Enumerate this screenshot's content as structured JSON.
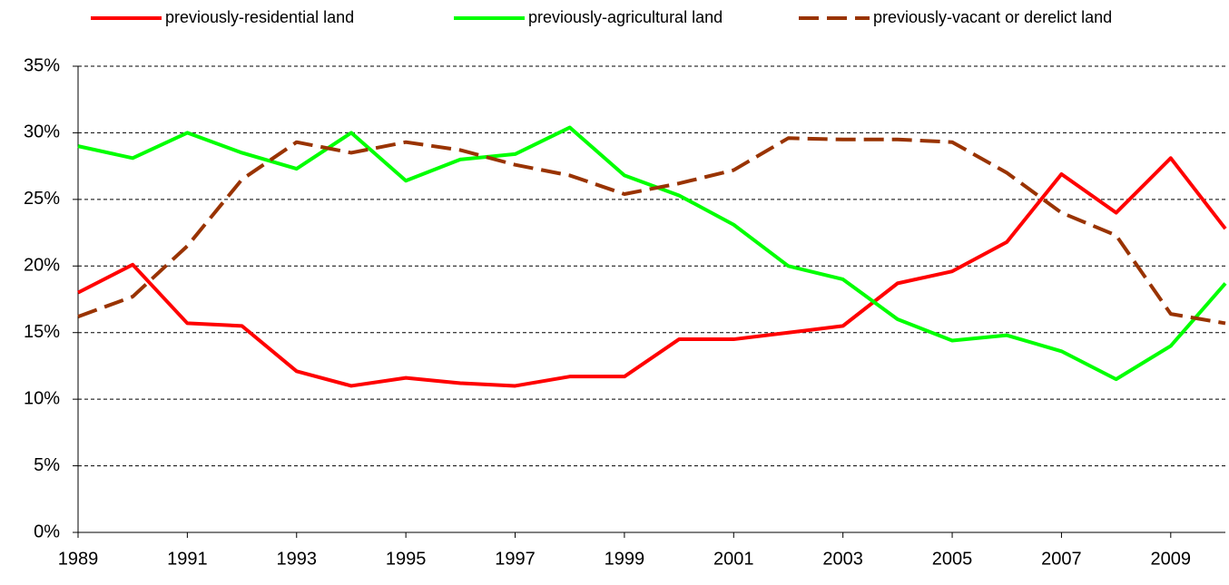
{
  "chart_data": {
    "type": "line",
    "x": [
      1989,
      1990,
      1991,
      1992,
      1993,
      1994,
      1995,
      1996,
      1997,
      1998,
      1999,
      2000,
      2001,
      2002,
      2003,
      2004,
      2005,
      2006,
      2007,
      2008,
      2009,
      2010
    ],
    "xlim": [
      1989,
      2010
    ],
    "xticks": [
      1989,
      1991,
      1993,
      1995,
      1997,
      1999,
      2001,
      2003,
      2005,
      2007,
      2009
    ],
    "ylim": [
      0,
      35
    ],
    "yticks": [
      {
        "value": 0,
        "label": "0%"
      },
      {
        "value": 5,
        "label": "5%"
      },
      {
        "value": 10,
        "label": "10%"
      },
      {
        "value": 15,
        "label": "15%"
      },
      {
        "value": 20,
        "label": "20%"
      },
      {
        "value": 25,
        "label": "25%"
      },
      {
        "value": 30,
        "label": "30%"
      },
      {
        "value": 35,
        "label": "35%"
      }
    ],
    "grid": true,
    "legend": "top",
    "series": [
      {
        "name": "previously-residential land",
        "color": "#ff0000",
        "style": "solid",
        "values": [
          18,
          20.1,
          15.7,
          15.5,
          12.1,
          11,
          11.6,
          11.2,
          11,
          11.7,
          11.7,
          14.5,
          14.5,
          15,
          15.5,
          18.7,
          19.6,
          21.8,
          26.9,
          24,
          28.1,
          22.8
        ]
      },
      {
        "name": "previously-agricultural land",
        "color": "#00ff00",
        "style": "solid",
        "values": [
          29,
          28.1,
          30,
          28.5,
          27.3,
          30,
          26.4,
          28,
          28.4,
          30.4,
          26.8,
          25.3,
          23.1,
          20,
          19,
          16,
          14.4,
          14.8,
          13.6,
          11.5,
          14,
          18.7
        ]
      },
      {
        "name": "previously-vacant or derelict land",
        "color": "#993300",
        "style": "dashed",
        "values": [
          16.2,
          17.7,
          21.5,
          26.5,
          29.3,
          28.5,
          29.3,
          28.7,
          27.6,
          26.8,
          25.4,
          26.2,
          27.2,
          29.6,
          29.5,
          29.5,
          29.3,
          27,
          24,
          22.3,
          16.4,
          15.7
        ]
      }
    ]
  }
}
